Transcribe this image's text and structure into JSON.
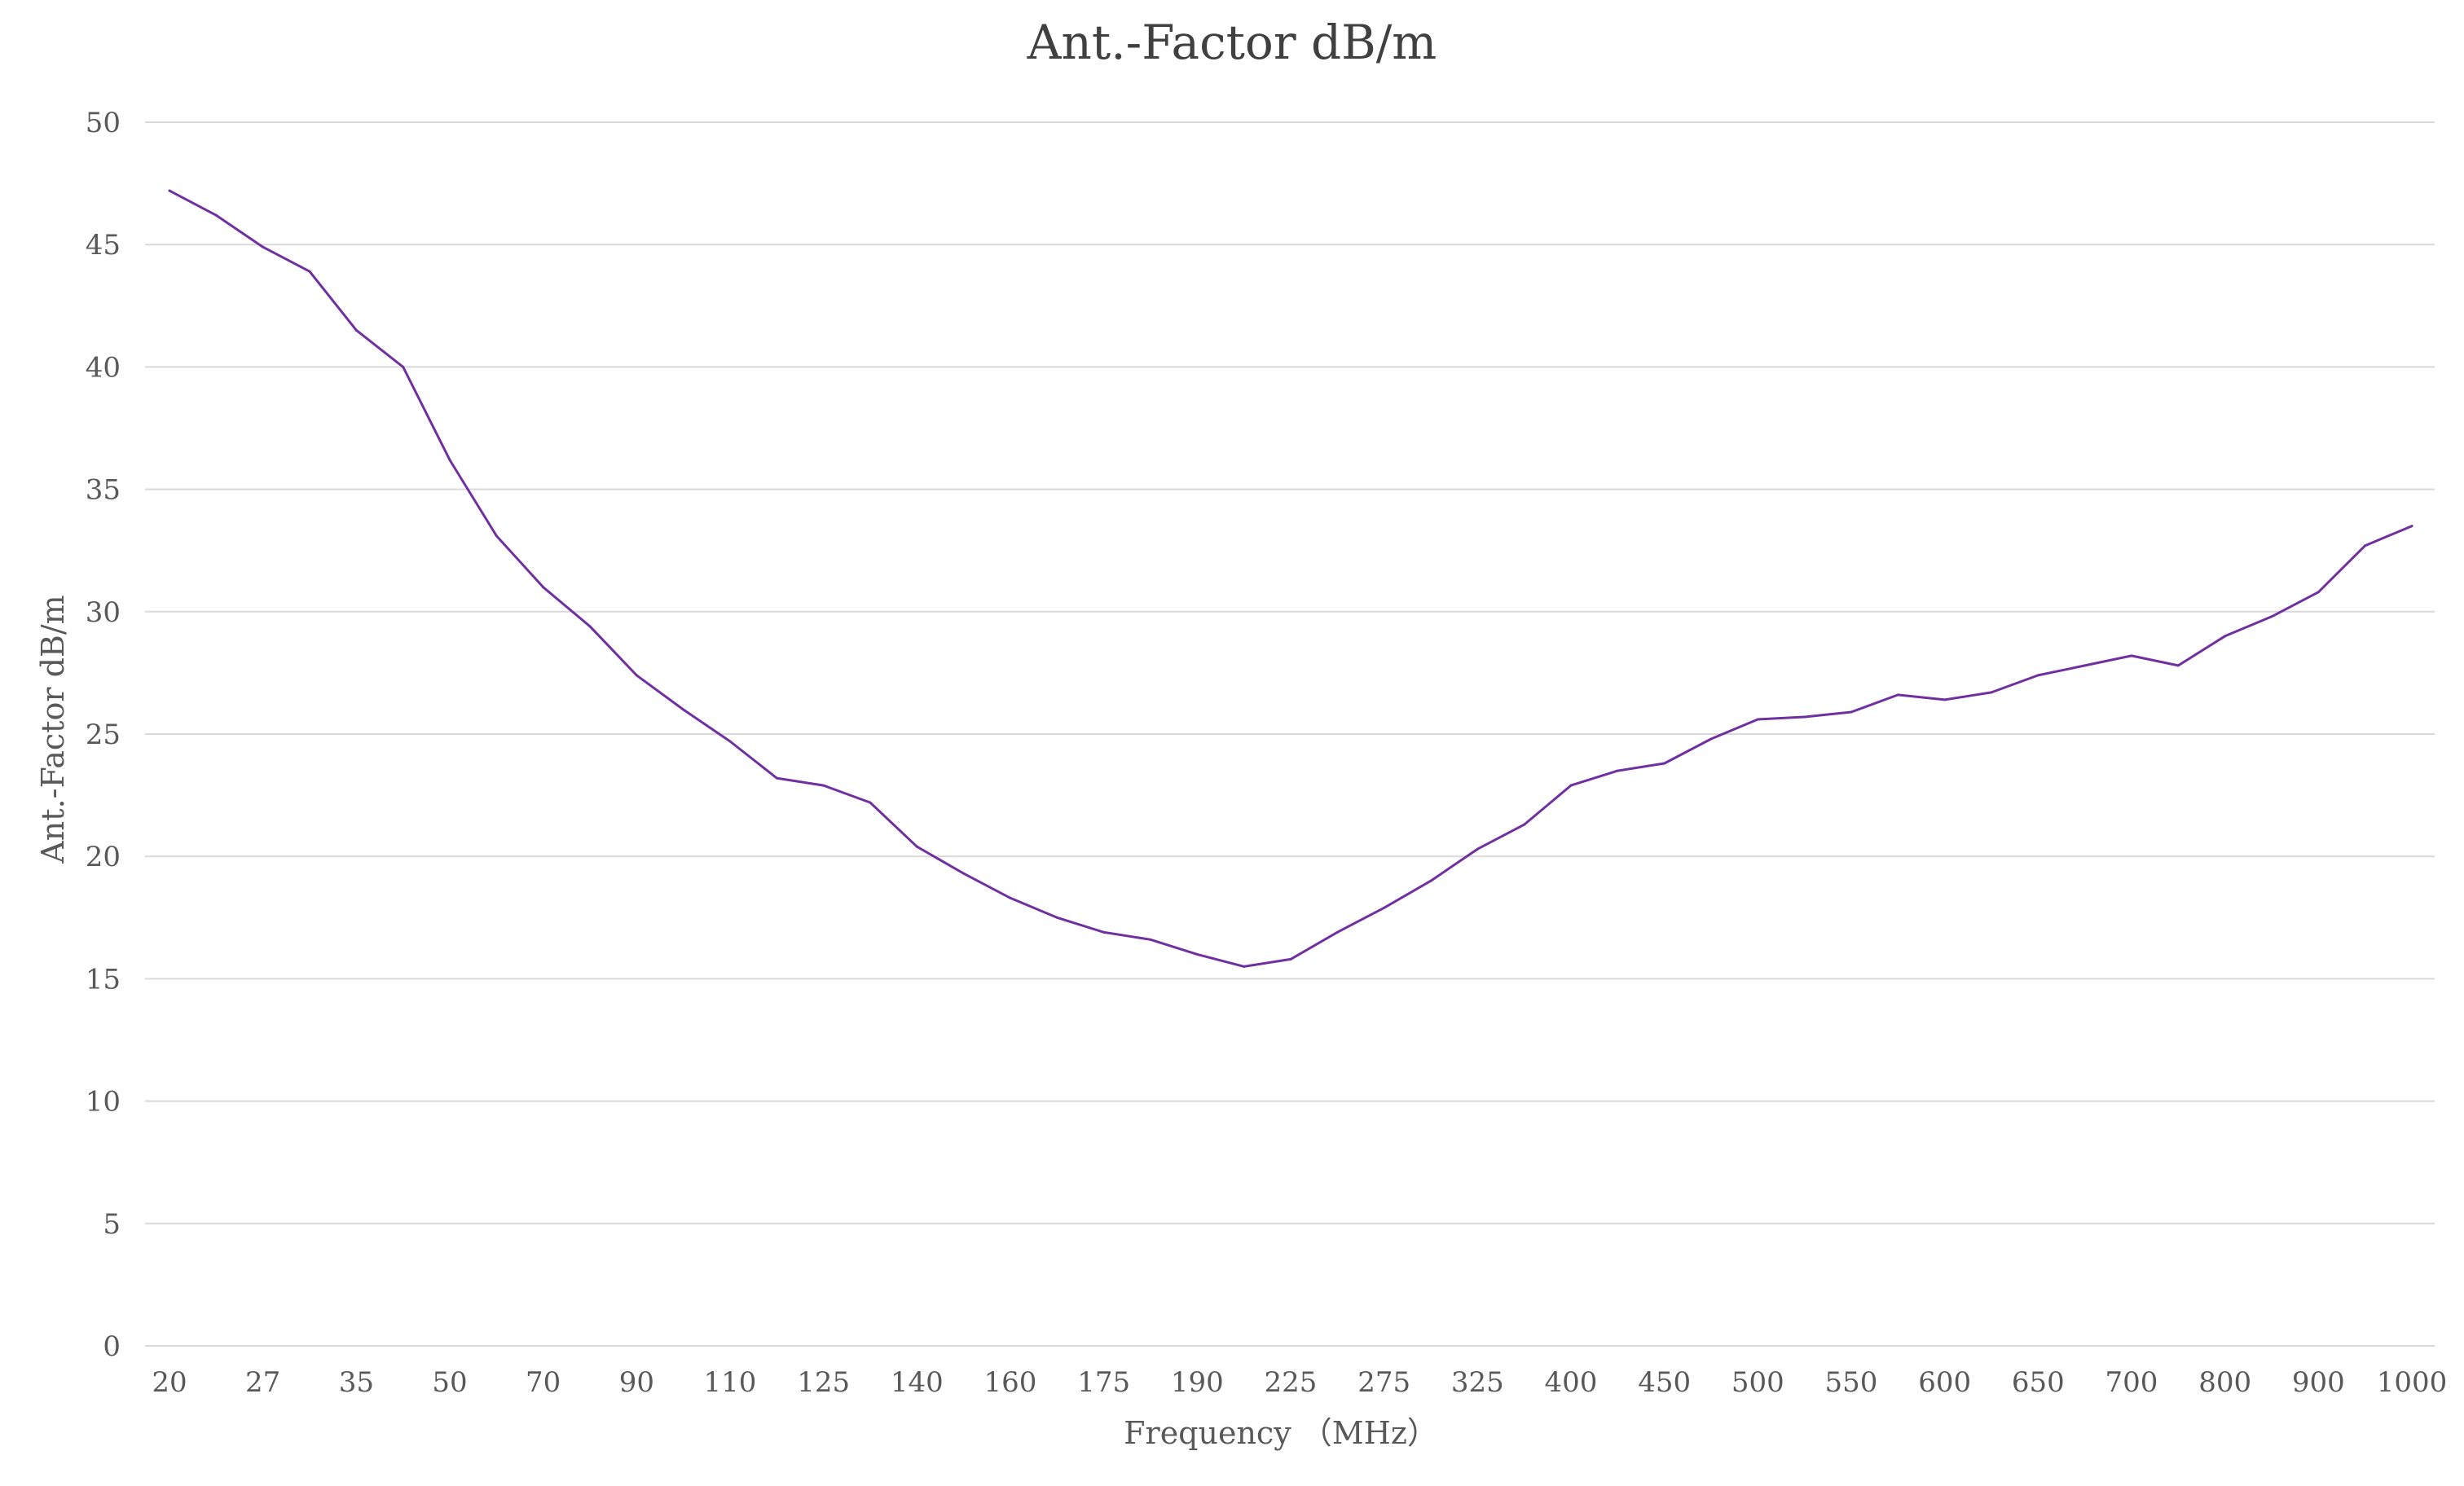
{
  "chart_data": {
    "type": "line",
    "title": "Ant.-Factor dB/m",
    "xlabel": "Frequency （MHz）",
    "ylabel": "Ant.-Factor dB/m",
    "ylim": [
      0,
      50
    ],
    "yticks": [
      0,
      5,
      10,
      15,
      20,
      25,
      30,
      35,
      40,
      45,
      50
    ],
    "grid": true,
    "legend": "none",
    "x_tick_labels": [
      "20",
      "27",
      "35",
      "50",
      "70",
      "90",
      "110",
      "125",
      "140",
      "160",
      "175",
      "190",
      "225",
      "275",
      "325",
      "400",
      "450",
      "500",
      "550",
      "600",
      "650",
      "700",
      "800",
      "900",
      "1000"
    ],
    "x_tick_indices": [
      0,
      2,
      4,
      6,
      8,
      10,
      12,
      14,
      16,
      18,
      20,
      22,
      24,
      26,
      28,
      30,
      32,
      34,
      36,
      38,
      40,
      42,
      44,
      46,
      48
    ],
    "series": [
      {
        "color": "#7030a0",
        "values": [
          47.2,
          46.2,
          44.9,
          43.9,
          41.5,
          40.0,
          36.2,
          33.1,
          31.0,
          29.4,
          27.4,
          26.0,
          24.7,
          23.2,
          22.9,
          22.2,
          20.4,
          19.3,
          18.3,
          17.5,
          16.9,
          16.6,
          16.0,
          15.5,
          15.8,
          16.9,
          17.9,
          19.0,
          20.3,
          21.3,
          22.9,
          23.5,
          23.8,
          24.8,
          25.6,
          25.7,
          25.9,
          26.6,
          26.4,
          26.7,
          27.4,
          27.8,
          28.2,
          27.8,
          29.0,
          29.8,
          30.8,
          32.7,
          33.5
        ]
      }
    ]
  }
}
